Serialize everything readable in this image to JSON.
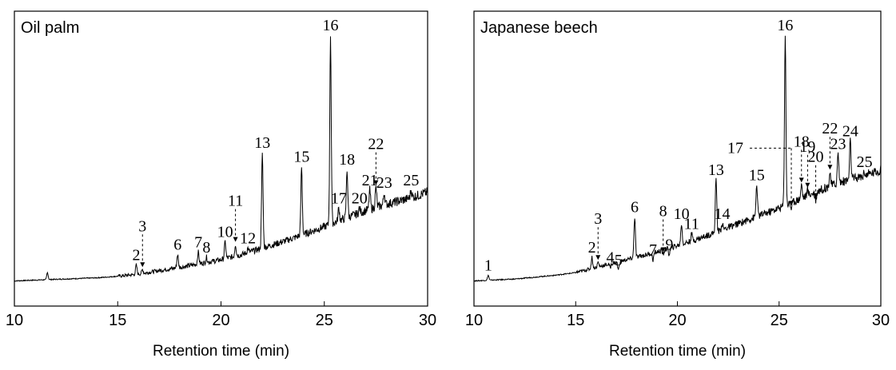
{
  "chart_data": [
    {
      "type": "line",
      "panel_label": "Oil palm",
      "xlabel": "Retention time (min)",
      "ylabel": "",
      "xlim": [
        10,
        30
      ],
      "ylim": [
        0,
        1
      ],
      "x_ticks": [
        10,
        15,
        20,
        25,
        30
      ],
      "grid": false,
      "baseline": [
        [
          10,
          0.048
        ],
        [
          12,
          0.054
        ],
        [
          14,
          0.06
        ],
        [
          15,
          0.066
        ],
        [
          16,
          0.074
        ],
        [
          17,
          0.088
        ],
        [
          18,
          0.1
        ],
        [
          19,
          0.115
        ],
        [
          20,
          0.13
        ],
        [
          21,
          0.15
        ],
        [
          22,
          0.175
        ],
        [
          23,
          0.2
        ],
        [
          24,
          0.228
        ],
        [
          25,
          0.258
        ],
        [
          26,
          0.29
        ],
        [
          27,
          0.32
        ],
        [
          28,
          0.345
        ],
        [
          29,
          0.365
        ],
        [
          30,
          0.392
        ]
      ],
      "peaks": [
        {
          "label": "",
          "x": 11.6,
          "y": 0.08
        },
        {
          "label": "2",
          "x": 15.9,
          "y": 0.11,
          "ann": "plain"
        },
        {
          "label": "3",
          "x": 16.2,
          "y": 0.092,
          "ann": "arrow"
        },
        {
          "label": "6",
          "x": 17.9,
          "y": 0.15,
          "ann": "plain"
        },
        {
          "label": "7",
          "x": 18.9,
          "y": 0.16,
          "ann": "plain"
        },
        {
          "label": "8",
          "x": 19.3,
          "y": 0.14,
          "ann": "plain"
        },
        {
          "label": "10",
          "x": 20.2,
          "y": 0.2,
          "ann": "plain"
        },
        {
          "label": "11",
          "x": 20.7,
          "y": 0.19,
          "ann": "arrow"
        },
        {
          "label": "12",
          "x": 21.3,
          "y": 0.175,
          "ann": "plain"
        },
        {
          "label": "13",
          "x": 22.0,
          "y": 0.545,
          "ann": "plain"
        },
        {
          "label": "15",
          "x": 23.9,
          "y": 0.49,
          "ann": "plain"
        },
        {
          "label": "16",
          "x": 25.3,
          "y": 1.0,
          "ann": "plain"
        },
        {
          "label": "17",
          "x": 25.7,
          "y": 0.33,
          "ann": "plain"
        },
        {
          "label": "18",
          "x": 26.1,
          "y": 0.48,
          "ann": "plain"
        },
        {
          "label": "20",
          "x": 26.7,
          "y": 0.33,
          "ann": "plain"
        },
        {
          "label": "21",
          "x": 27.2,
          "y": 0.4,
          "ann": "plain"
        },
        {
          "label": "22",
          "x": 27.5,
          "y": 0.41,
          "ann": "arrow"
        },
        {
          "label": "23",
          "x": 27.9,
          "y": 0.39,
          "ann": "plain"
        },
        {
          "label": "25",
          "x": 29.2,
          "y": 0.4,
          "ann": "plain"
        }
      ]
    },
    {
      "type": "line",
      "panel_label": "Japanese beech",
      "xlabel": "Retention time (min)",
      "ylabel": "",
      "xlim": [
        10,
        30
      ],
      "ylim": [
        0,
        1
      ],
      "x_ticks": [
        10,
        15,
        20,
        25,
        30
      ],
      "grid": false,
      "baseline": [
        [
          10,
          0.048
        ],
        [
          12,
          0.055
        ],
        [
          14,
          0.07
        ],
        [
          15,
          0.08
        ],
        [
          16,
          0.1
        ],
        [
          17,
          0.12
        ],
        [
          18,
          0.14
        ],
        [
          19,
          0.16
        ],
        [
          20,
          0.185
        ],
        [
          21,
          0.21
        ],
        [
          22,
          0.24
        ],
        [
          23,
          0.27
        ],
        [
          24,
          0.3
        ],
        [
          25,
          0.33
        ],
        [
          26,
          0.365
        ],
        [
          27,
          0.4
        ],
        [
          28,
          0.43
        ],
        [
          29,
          0.45
        ],
        [
          30,
          0.478
        ]
      ],
      "peaks": [
        {
          "label": "1",
          "x": 10.7,
          "y": 0.07,
          "ann": "plain"
        },
        {
          "label": "2",
          "x": 15.8,
          "y": 0.14,
          "ann": "plain"
        },
        {
          "label": "3",
          "x": 16.1,
          "y": 0.12,
          "ann": "arrow"
        },
        {
          "label": "4",
          "x": 16.7,
          "y": 0.1,
          "ann": "plain"
        },
        {
          "label": "5",
          "x": 17.1,
          "y": 0.09,
          "ann": "plain"
        },
        {
          "label": "6",
          "x": 17.9,
          "y": 0.295,
          "ann": "plain"
        },
        {
          "label": "7",
          "x": 18.8,
          "y": 0.13,
          "ann": "plain"
        },
        {
          "label": "8",
          "x": 19.3,
          "y": 0.15,
          "ann": "arrow"
        },
        {
          "label": "9",
          "x": 19.6,
          "y": 0.15,
          "ann": "plain"
        },
        {
          "label": "10",
          "x": 20.2,
          "y": 0.27,
          "ann": "plain"
        },
        {
          "label": "11",
          "x": 20.7,
          "y": 0.23,
          "ann": "plain"
        },
        {
          "label": "13",
          "x": 21.9,
          "y": 0.44,
          "ann": "plain"
        },
        {
          "label": "14",
          "x": 22.2,
          "y": 0.27,
          "ann": "plain"
        },
        {
          "label": "15",
          "x": 23.9,
          "y": 0.42,
          "ann": "plain"
        },
        {
          "label": "16",
          "x": 25.3,
          "y": 1.0,
          "ann": "plain"
        },
        {
          "label": "17",
          "x": 25.6,
          "y": 0.33,
          "ann": "arrow-left"
        },
        {
          "label": "18",
          "x": 26.1,
          "y": 0.42,
          "ann": "arrow"
        },
        {
          "label": "19",
          "x": 26.4,
          "y": 0.4,
          "ann": "arrow"
        },
        {
          "label": "20",
          "x": 26.8,
          "y": 0.36,
          "ann": "arrow"
        },
        {
          "label": "22",
          "x": 27.5,
          "y": 0.47,
          "ann": "arrow"
        },
        {
          "label": "23",
          "x": 27.9,
          "y": 0.54,
          "ann": "plain"
        },
        {
          "label": "24",
          "x": 28.5,
          "y": 0.59,
          "ann": "plain"
        },
        {
          "label": "25",
          "x": 29.2,
          "y": 0.47,
          "ann": "plain"
        }
      ]
    }
  ]
}
